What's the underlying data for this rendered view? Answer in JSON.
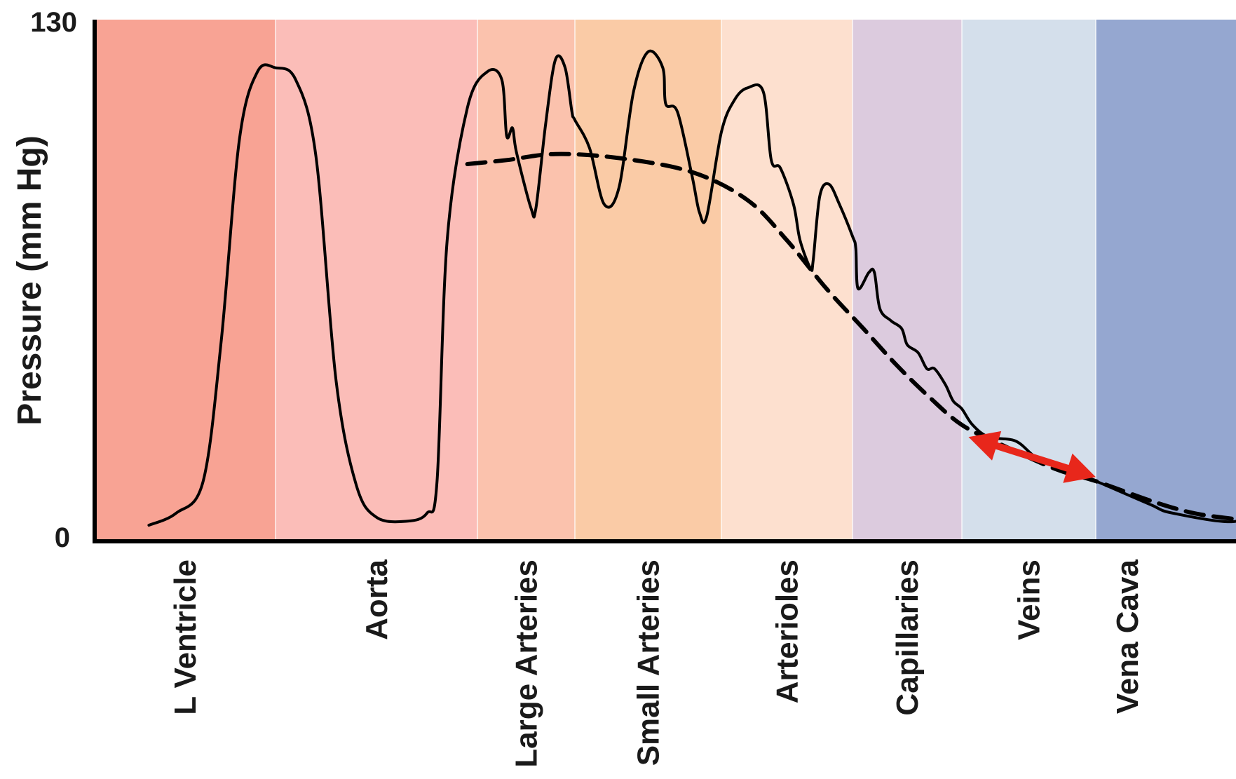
{
  "chart_data": {
    "type": "line",
    "title": "",
    "xlabel": "",
    "ylabel": "Pressure (mm Hg)",
    "ylim": [
      0,
      130
    ],
    "yticks": [
      "0",
      "130"
    ],
    "grid": false,
    "legend": "none",
    "regions": [
      {
        "name": "L Ventricle",
        "color": "#f8a394"
      },
      {
        "name": "Aorta",
        "color": "#fbbdb8"
      },
      {
        "name": "Large Arteries",
        "color": "#fbc2ad"
      },
      {
        "name": "Small Arteries",
        "color": "#facba6"
      },
      {
        "name": "Arterioles",
        "color": "#fde0cf"
      },
      {
        "name": "Capillaries",
        "color": "#dccbde"
      },
      {
        "name": "Veins",
        "color": "#d4dfeb"
      },
      {
        "name": "Vena Cava",
        "color": "#95a7d0"
      }
    ],
    "series": [
      {
        "style": "solid",
        "color": "#000000",
        "points": [
          [
            0.3,
            4
          ],
          [
            0.45,
            7
          ],
          [
            0.6,
            15
          ],
          [
            0.7,
            50
          ],
          [
            0.8,
            100
          ],
          [
            0.9,
            117
          ],
          [
            1.0,
            118
          ],
          [
            1.1,
            115
          ],
          [
            1.2,
            96
          ],
          [
            1.3,
            40
          ],
          [
            1.4,
            14
          ],
          [
            1.5,
            6
          ],
          [
            1.65,
            5
          ],
          [
            1.75,
            7
          ],
          [
            1.8,
            15
          ],
          [
            1.85,
            75
          ],
          [
            1.95,
            108
          ],
          [
            2.1,
            117
          ],
          [
            2.25,
            115
          ],
          [
            2.3,
            101
          ],
          [
            2.36,
            103
          ],
          [
            2.4,
            97
          ],
          [
            2.55,
            83
          ],
          [
            2.6,
            83
          ],
          [
            2.7,
            104
          ],
          [
            2.8,
            120
          ],
          [
            2.9,
            118
          ],
          [
            2.97,
            107
          ],
          [
            3.0,
            105
          ],
          [
            3.1,
            98
          ],
          [
            3.2,
            84
          ],
          [
            3.3,
            88
          ],
          [
            3.4,
            112
          ],
          [
            3.5,
            122
          ],
          [
            3.6,
            118
          ],
          [
            3.62,
            109
          ],
          [
            3.7,
            107
          ],
          [
            3.8,
            91
          ],
          [
            3.85,
            82
          ],
          [
            3.9,
            81
          ],
          [
            4.0,
            102
          ],
          [
            4.1,
            110
          ],
          [
            4.2,
            113
          ],
          [
            4.32,
            112
          ],
          [
            4.38,
            95
          ],
          [
            4.45,
            93
          ],
          [
            4.55,
            84
          ],
          [
            4.6,
            75
          ],
          [
            4.68,
            68
          ],
          [
            4.7,
            70
          ],
          [
            4.75,
            86
          ],
          [
            4.82,
            89
          ],
          [
            4.9,
            84
          ],
          [
            5.0,
            76
          ],
          [
            5.03,
            73
          ],
          [
            5.05,
            63
          ],
          [
            5.15,
            67
          ],
          [
            5.2,
            67
          ],
          [
            5.25,
            58
          ],
          [
            5.35,
            55
          ],
          [
            5.45,
            53
          ],
          [
            5.5,
            49
          ],
          [
            5.6,
            47
          ],
          [
            5.68,
            43
          ],
          [
            5.75,
            43
          ],
          [
            5.85,
            39
          ],
          [
            5.92,
            35
          ],
          [
            6.0,
            33
          ],
          [
            6.08,
            29
          ],
          [
            6.2,
            26
          ],
          [
            6.4,
            25
          ],
          [
            6.55,
            21
          ],
          [
            6.7,
            19
          ],
          [
            6.9,
            16
          ],
          [
            7.0,
            15
          ],
          [
            7.2,
            12
          ],
          [
            7.4,
            9
          ],
          [
            7.55,
            7
          ],
          [
            8.0,
            5
          ],
          [
            8.08,
            11
          ],
          [
            8.15,
            6
          ],
          [
            8.22,
            1
          ],
          [
            8.3,
            5
          ],
          [
            8.38,
            17
          ],
          [
            8.45,
            6
          ],
          [
            8.5,
            -1
          ],
          [
            8.58,
            6
          ],
          [
            8.65,
            12
          ],
          [
            8.72,
            4
          ],
          [
            8.8,
            -3
          ],
          [
            8.86,
            5
          ],
          [
            8.93,
            11
          ],
          [
            9.0,
            4
          ],
          [
            9.05,
            -3
          ]
        ]
      },
      {
        "style": "dashed",
        "color": "#000000",
        "points": [
          [
            1.95,
            94
          ],
          [
            2.3,
            95
          ],
          [
            2.8,
            96.5
          ],
          [
            3.3,
            95.5
          ],
          [
            3.8,
            92
          ],
          [
            4.2,
            85
          ],
          [
            4.5,
            75
          ],
          [
            4.8,
            63
          ],
          [
            5.1,
            53
          ],
          [
            5.4,
            44
          ],
          [
            5.7,
            36
          ],
          [
            6.0,
            29
          ],
          [
            6.3,
            24
          ],
          [
            6.7,
            18
          ],
          [
            7.0,
            15
          ],
          [
            7.4,
            10
          ],
          [
            7.7,
            7
          ],
          [
            8.0,
            5.5
          ]
        ]
      }
    ],
    "annotations": [
      {
        "type": "double-arrow",
        "color": "#e8271b",
        "from": [
          6.05,
          26
        ],
        "to": [
          7.0,
          16
        ]
      }
    ]
  }
}
